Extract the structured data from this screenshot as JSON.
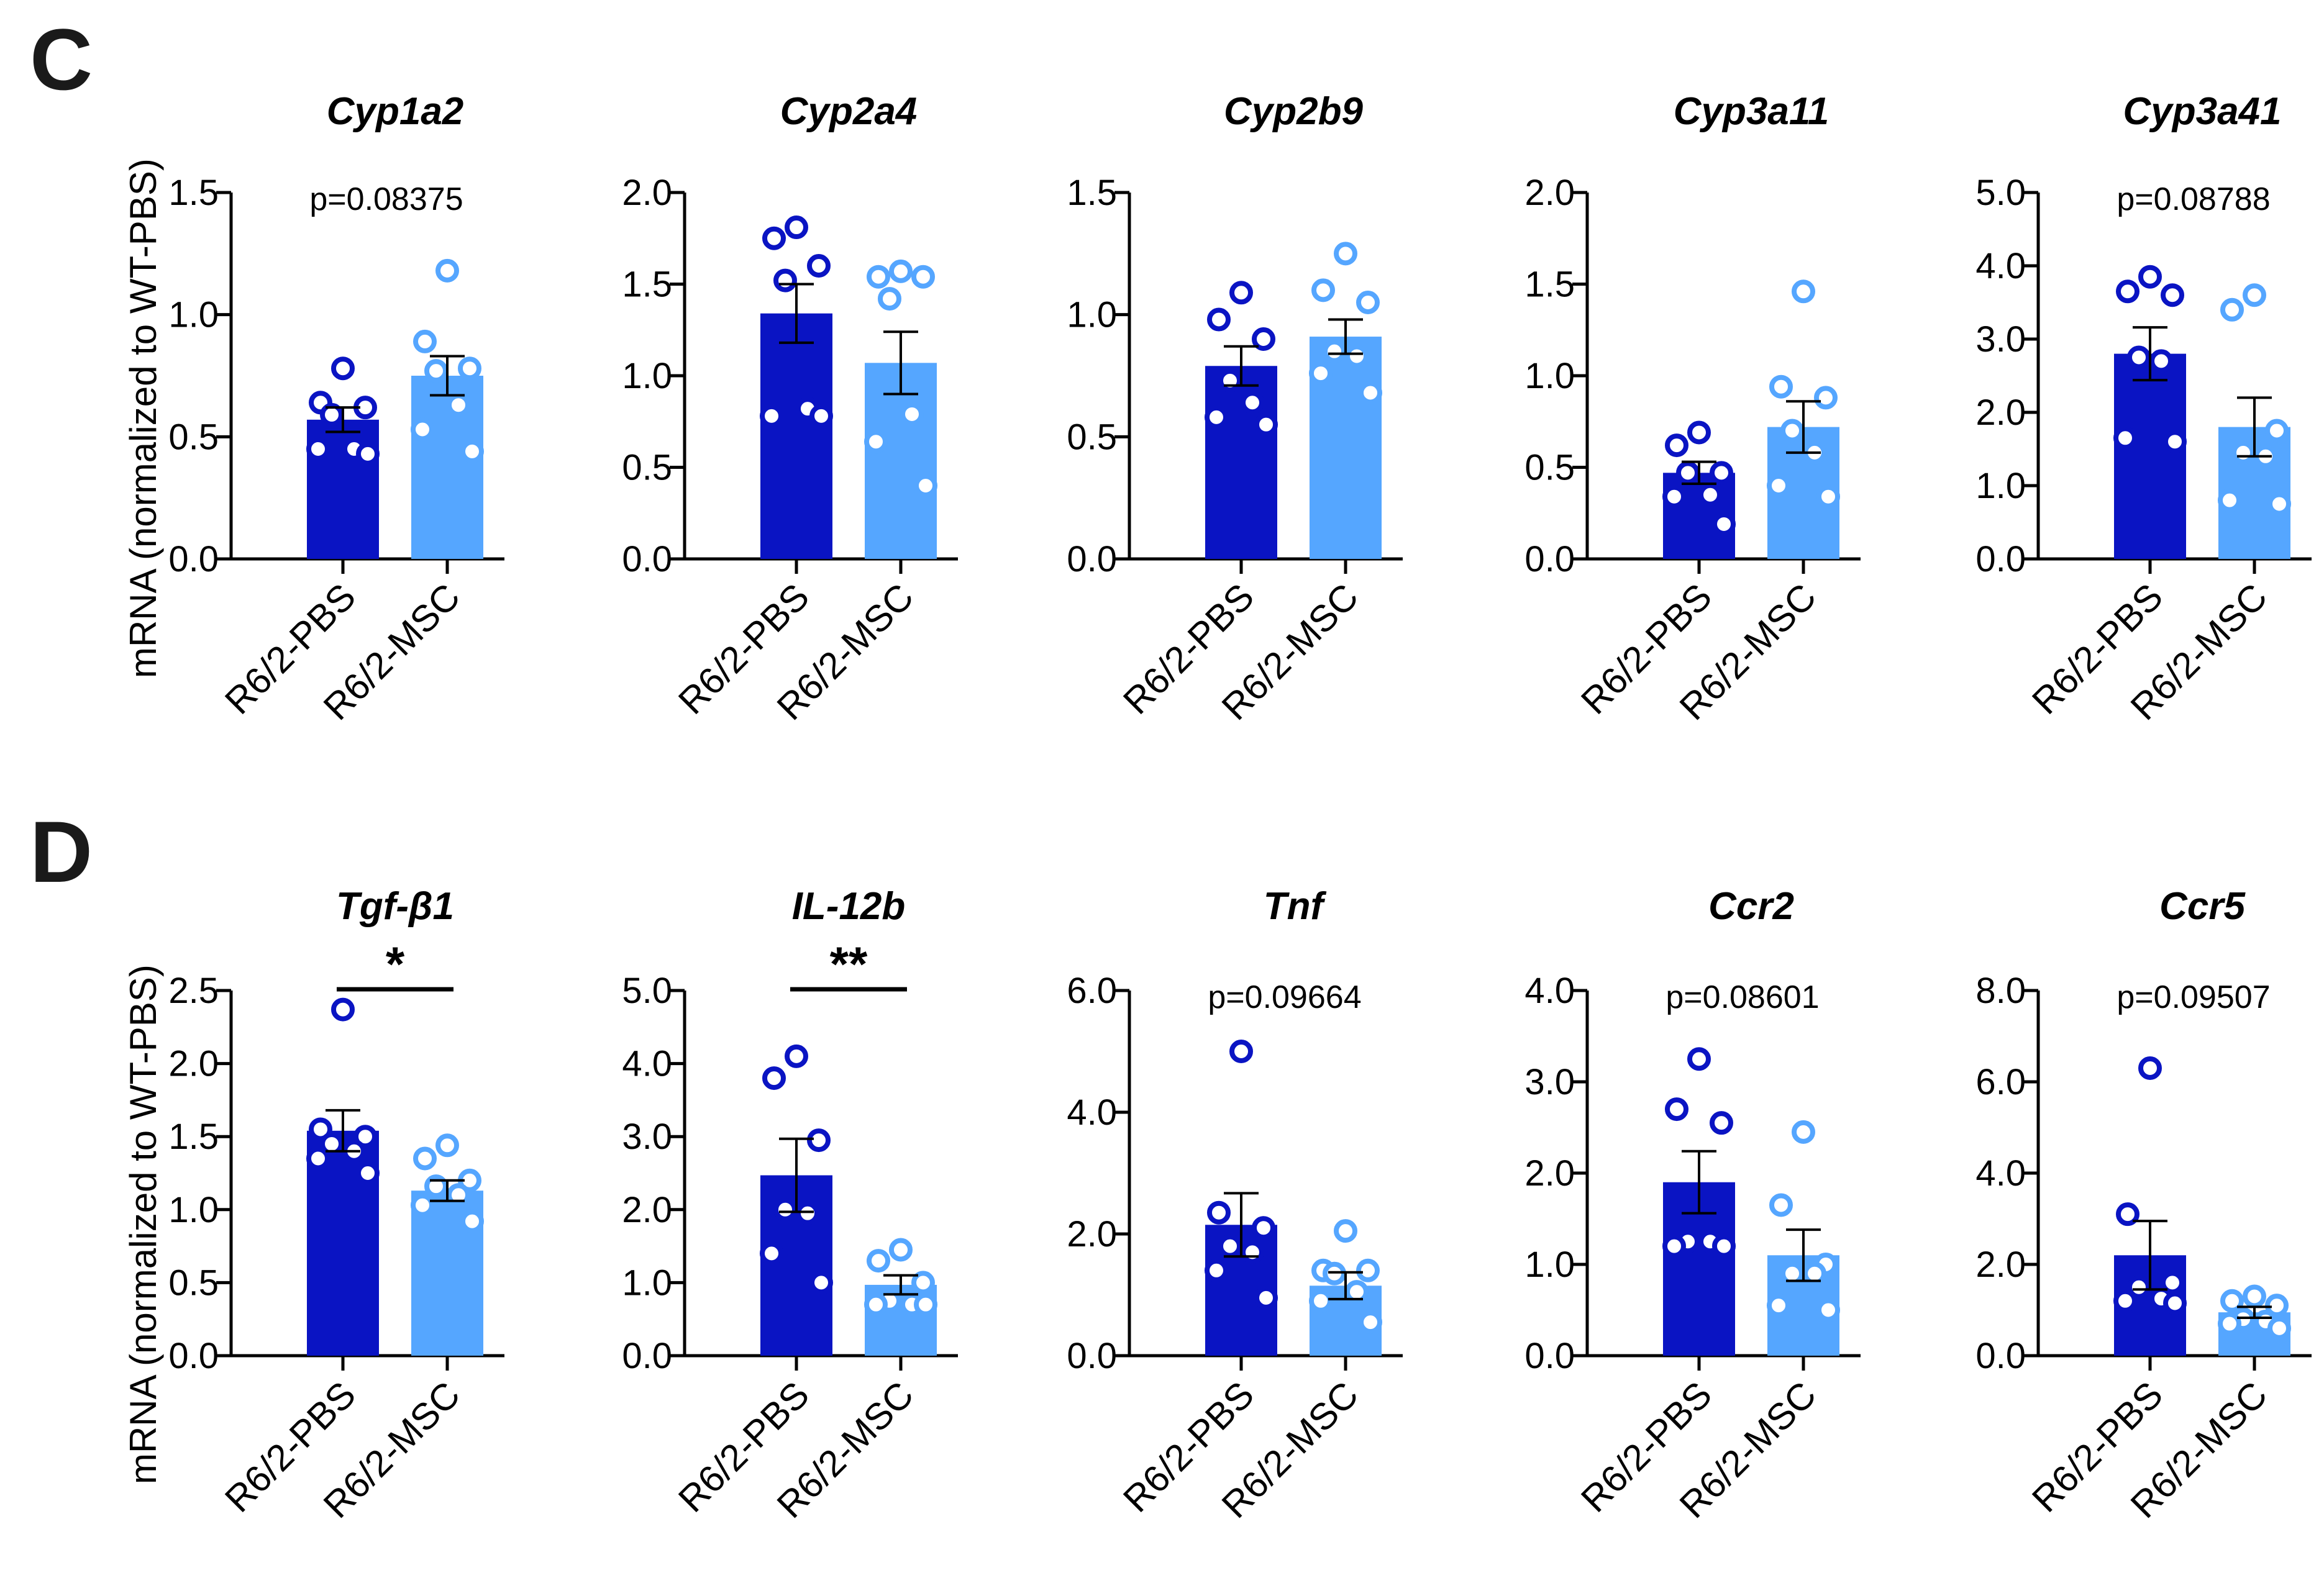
{
  "panels": [
    {
      "letter": "C",
      "ylabel": "mRNA (normalized to WT-PBS)"
    },
    {
      "letter": "D",
      "ylabel": "mRNA (normalized to WT-PBS)"
    }
  ],
  "colors": {
    "pbs": "#0a14c3",
    "msc": "#55a6ff",
    "axis": "#000000"
  },
  "groups": [
    "R6/2-PBS",
    "R6/2-MSC"
  ],
  "chart_data": [
    {
      "type": "bar",
      "title": "Cyp1a2",
      "categories": [
        "R6/2-PBS",
        "R6/2-MSC"
      ],
      "ylim": [
        0,
        1.5
      ],
      "ticks": [
        "0.0",
        "0.5",
        "1.0",
        "1.5"
      ],
      "ylabel": "mRNA (normalized to WT-PBS)",
      "annotation": "p=0.08375",
      "annotation_type": "p",
      "series": [
        {
          "name": "R6/2-PBS",
          "mean": 0.57,
          "sem": 0.05,
          "points": [
            0.78,
            0.64,
            0.62,
            0.59,
            0.45,
            0.45,
            0.43
          ]
        },
        {
          "name": "R6/2-MSC",
          "mean": 0.75,
          "sem": 0.08,
          "points": [
            1.18,
            0.89,
            0.78,
            0.77,
            0.63,
            0.53,
            0.44
          ]
        }
      ]
    },
    {
      "type": "bar",
      "title": "Cyp2a4",
      "categories": [
        "R6/2-PBS",
        "R6/2-MSC"
      ],
      "ylim": [
        0,
        2.0
      ],
      "ticks": [
        "0.0",
        "0.5",
        "1.0",
        "1.5",
        "2.0"
      ],
      "ylabel": "mRNA (normalized to WT-PBS)",
      "annotation": "",
      "annotation_type": "none",
      "series": [
        {
          "name": "R6/2-PBS",
          "mean": 1.34,
          "sem": 0.16,
          "points": [
            1.81,
            1.75,
            1.6,
            1.52,
            0.82,
            0.78,
            0.78
          ]
        },
        {
          "name": "R6/2-MSC",
          "mean": 1.07,
          "sem": 0.17,
          "points": [
            1.57,
            1.54,
            1.54,
            1.42,
            0.79,
            0.64,
            0.4
          ]
        }
      ]
    },
    {
      "type": "bar",
      "title": "Cyp2b9",
      "categories": [
        "R6/2-PBS",
        "R6/2-MSC"
      ],
      "ylim": [
        0,
        1.5
      ],
      "ticks": [
        "0.0",
        "0.5",
        "1.0",
        "1.5"
      ],
      "ylabel": "mRNA (normalized to WT-PBS)",
      "annotation": "",
      "annotation_type": "none",
      "series": [
        {
          "name": "R6/2-PBS",
          "mean": 0.79,
          "sem": 0.08,
          "points": [
            1.09,
            0.98,
            0.9,
            0.73,
            0.64,
            0.58,
            0.55
          ]
        },
        {
          "name": "R6/2-MSC",
          "mean": 0.91,
          "sem": 0.07,
          "points": [
            1.25,
            1.1,
            1.05,
            0.85,
            0.83,
            0.76,
            0.68
          ]
        }
      ]
    },
    {
      "type": "bar",
      "title": "Cyp3a11",
      "categories": [
        "R6/2-PBS",
        "R6/2-MSC"
      ],
      "ylim": [
        0,
        2.0
      ],
      "ticks": [
        "0.0",
        "0.5",
        "1.0",
        "1.5",
        "2.0"
      ],
      "ylabel": "mRNA (normalized to WT-PBS)",
      "annotation": "",
      "annotation_type": "none",
      "series": [
        {
          "name": "R6/2-PBS",
          "mean": 0.47,
          "sem": 0.06,
          "points": [
            0.69,
            0.62,
            0.47,
            0.47,
            0.35,
            0.34,
            0.19
          ]
        },
        {
          "name": "R6/2-MSC",
          "mean": 0.72,
          "sem": 0.14,
          "points": [
            1.46,
            0.94,
            0.88,
            0.7,
            0.58,
            0.4,
            0.34
          ]
        }
      ]
    },
    {
      "type": "bar",
      "title": "Cyp3a41",
      "categories": [
        "R6/2-PBS",
        "R6/2-MSC"
      ],
      "ylim": [
        0,
        5.0
      ],
      "ticks": [
        "0.0",
        "1.0",
        "2.0",
        "3.0",
        "4.0",
        "5.0"
      ],
      "ylabel": "mRNA (normalized to WT-PBS)",
      "annotation": "p=0.08788",
      "annotation_type": "p",
      "series": [
        {
          "name": "R6/2-PBS",
          "mean": 2.8,
          "sem": 0.36,
          "points": [
            3.85,
            3.65,
            3.6,
            2.75,
            2.7,
            1.65,
            1.6
          ]
        },
        {
          "name": "R6/2-MSC",
          "mean": 1.8,
          "sem": 0.4,
          "points": [
            3.6,
            3.4,
            1.75,
            1.45,
            1.4,
            0.8,
            0.75
          ]
        }
      ]
    },
    {
      "type": "bar",
      "title": "Tgf-β1",
      "categories": [
        "R6/2-PBS",
        "R6/2-MSC"
      ],
      "ylim": [
        0,
        2.5
      ],
      "ticks": [
        "0.0",
        "0.5",
        "1.0",
        "1.5",
        "2.0",
        "2.5"
      ],
      "ylabel": "mRNA (normalized to WT-PBS)",
      "annotation": "*",
      "annotation_type": "star",
      "series": [
        {
          "name": "R6/2-PBS",
          "mean": 1.54,
          "sem": 0.14,
          "points": [
            2.37,
            1.55,
            1.5,
            1.45,
            1.4,
            1.35,
            1.25
          ]
        },
        {
          "name": "R6/2-MSC",
          "mean": 1.13,
          "sem": 0.07,
          "points": [
            1.44,
            1.35,
            1.2,
            1.16,
            1.1,
            1.03,
            0.92
          ]
        }
      ]
    },
    {
      "type": "bar",
      "title": "IL-12b",
      "categories": [
        "R6/2-PBS",
        "R6/2-MSC"
      ],
      "ylim": [
        0,
        5.0
      ],
      "ticks": [
        "0.0",
        "1.0",
        "2.0",
        "3.0",
        "4.0",
        "5.0"
      ],
      "ylabel": "mRNA (normalized to WT-PBS)",
      "annotation": "**",
      "annotation_type": "star",
      "series": [
        {
          "name": "R6/2-PBS",
          "mean": 2.47,
          "sem": 0.5,
          "points": [
            4.1,
            3.8,
            2.95,
            2.0,
            1.95,
            1.4,
            1.0
          ]
        },
        {
          "name": "R6/2-MSC",
          "mean": 0.97,
          "sem": 0.13,
          "points": [
            1.45,
            1.3,
            1.0,
            0.75,
            0.7,
            0.7,
            0.7
          ]
        }
      ]
    },
    {
      "type": "bar",
      "title": "Tnf",
      "categories": [
        "R6/2-PBS",
        "R6/2-MSC"
      ],
      "ylim": [
        0,
        6.0
      ],
      "ticks": [
        "0.0",
        "2.0",
        "4.0",
        "6.0"
      ],
      "ylabel": "mRNA (normalized to WT-PBS)",
      "annotation": "p=0.09664",
      "annotation_type": "p",
      "series": [
        {
          "name": "R6/2-PBS",
          "mean": 2.15,
          "sem": 0.52,
          "points": [
            5.0,
            2.35,
            2.1,
            1.8,
            1.7,
            1.4,
            0.95
          ]
        },
        {
          "name": "R6/2-MSC",
          "mean": 1.15,
          "sem": 0.22,
          "points": [
            2.05,
            1.4,
            1.4,
            1.35,
            1.05,
            0.9,
            0.55
          ]
        }
      ]
    },
    {
      "type": "bar",
      "title": "Ccr2",
      "categories": [
        "R6/2-PBS",
        "R6/2-MSC"
      ],
      "ylim": [
        0,
        4.0
      ],
      "ticks": [
        "0.0",
        "1.0",
        "2.0",
        "3.0",
        "4.0"
      ],
      "ylabel": "mRNA (normalized to WT-PBS)",
      "annotation": "p=0.08601",
      "annotation_type": "p",
      "series": [
        {
          "name": "R6/2-PBS",
          "mean": 1.9,
          "sem": 0.34,
          "points": [
            3.25,
            2.7,
            2.55,
            1.25,
            1.25,
            1.2,
            1.2
          ]
        },
        {
          "name": "R6/2-MSC",
          "mean": 1.1,
          "sem": 0.28,
          "points": [
            2.45,
            1.65,
            1.0,
            0.9,
            0.9,
            0.55,
            0.5
          ]
        }
      ]
    },
    {
      "type": "bar",
      "title": "Ccr5",
      "categories": [
        "R6/2-PBS",
        "R6/2-MSC"
      ],
      "ylim": [
        0,
        8.0
      ],
      "ticks": [
        "0.0",
        "2.0",
        "4.0",
        "6.0",
        "8.0"
      ],
      "ylabel": "mRNA (normalized to WT-PBS)",
      "annotation": "p=0.09507",
      "annotation_type": "p",
      "series": [
        {
          "name": "R6/2-PBS",
          "mean": 2.2,
          "sem": 0.75,
          "points": [
            6.3,
            3.1,
            1.6,
            1.5,
            1.25,
            1.2,
            1.15
          ]
        },
        {
          "name": "R6/2-MSC",
          "mean": 0.95,
          "sem": 0.12,
          "points": [
            1.3,
            1.2,
            1.1,
            0.8,
            0.75,
            0.7,
            0.6
          ]
        }
      ]
    }
  ]
}
